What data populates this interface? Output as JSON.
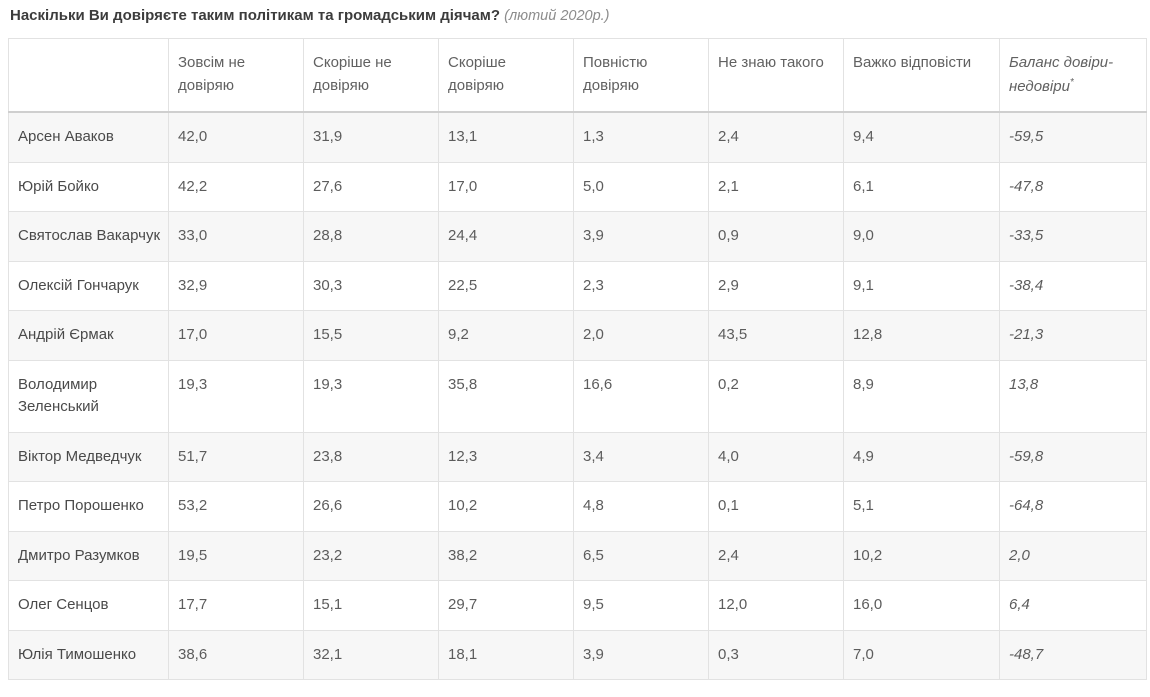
{
  "title": {
    "question": "Наскільки Ви довіряєте таким політикам та громадським діячам?",
    "period": "(лютий 2020р.)"
  },
  "table": {
    "columns": [
      "",
      "Зовсім не довіряю",
      "Скоріше не довіряю",
      "Скоріше довіряю",
      "Повністю довіряю",
      "Не знаю такого",
      "Важко відповісти",
      "Баланс довіри-недовіри"
    ],
    "footnote_mark": "*",
    "rows": [
      {
        "name": "Арсен Аваков",
        "values": [
          "42,0",
          "31,9",
          "13,1",
          "1,3",
          "2,4",
          "9,4",
          "-59,5"
        ]
      },
      {
        "name": "Юрій Бойко",
        "values": [
          "42,2",
          "27,6",
          "17,0",
          "5,0",
          "2,1",
          "6,1",
          "-47,8"
        ]
      },
      {
        "name": "Святослав Вакарчук",
        "values": [
          "33,0",
          "28,8",
          "24,4",
          "3,9",
          "0,9",
          "9,0",
          "-33,5"
        ]
      },
      {
        "name": "Олексій Гончарук",
        "values": [
          "32,9",
          "30,3",
          "22,5",
          "2,3",
          "2,9",
          "9,1",
          "-38,4"
        ]
      },
      {
        "name": "Андрій Єрмак",
        "values": [
          "17,0",
          "15,5",
          "9,2",
          "2,0",
          "43,5",
          "12,8",
          "-21,3"
        ]
      },
      {
        "name": "Володимир Зеленський",
        "values": [
          "19,3",
          "19,3",
          "35,8",
          "16,6",
          "0,2",
          "8,9",
          "13,8"
        ]
      },
      {
        "name": "Віктор Медведчук",
        "values": [
          "51,7",
          "23,8",
          "12,3",
          "3,4",
          "4,0",
          "4,9",
          "-59,8"
        ]
      },
      {
        "name": "Петро Порошенко",
        "values": [
          "53,2",
          "26,6",
          "10,2",
          "4,8",
          "0,1",
          "5,1",
          "-64,8"
        ]
      },
      {
        "name": "Дмитро Разумков",
        "values": [
          "19,5",
          "23,2",
          "38,2",
          "6,5",
          "2,4",
          "10,2",
          "2,0"
        ]
      },
      {
        "name": "Олег Сенцов",
        "values": [
          "17,7",
          "15,1",
          "29,7",
          "9,5",
          "12,0",
          "16,0",
          "6,4"
        ]
      },
      {
        "name": "Юлія Тимошенко",
        "values": [
          "38,6",
          "32,1",
          "18,1",
          "3,9",
          "0,3",
          "7,0",
          "-48,7"
        ]
      }
    ]
  },
  "chart_data": {
    "type": "table",
    "title": "Наскільки Ви довіряєте таким політикам та громадським діячам? (лютий 2020р.)",
    "columns": [
      "Зовсім не довіряю",
      "Скоріше не довіряю",
      "Скоріше довіряю",
      "Повністю довіряю",
      "Не знаю такого",
      "Важко відповісти",
      "Баланс довіри-недовіри*"
    ],
    "rows": [
      {
        "name": "Арсен Аваков",
        "values": [
          42.0,
          31.9,
          13.1,
          1.3,
          2.4,
          9.4,
          -59.5
        ]
      },
      {
        "name": "Юрій Бойко",
        "values": [
          42.2,
          27.6,
          17.0,
          5.0,
          2.1,
          6.1,
          -47.8
        ]
      },
      {
        "name": "Святослав Вакарчук",
        "values": [
          33.0,
          28.8,
          24.4,
          3.9,
          0.9,
          9.0,
          -33.5
        ]
      },
      {
        "name": "Олексій Гончарук",
        "values": [
          32.9,
          30.3,
          22.5,
          2.3,
          2.9,
          9.1,
          -38.4
        ]
      },
      {
        "name": "Андрій Єрмак",
        "values": [
          17.0,
          15.5,
          9.2,
          2.0,
          43.5,
          12.8,
          -21.3
        ]
      },
      {
        "name": "Володимир Зеленський",
        "values": [
          19.3,
          19.3,
          35.8,
          16.6,
          0.2,
          8.9,
          13.8
        ]
      },
      {
        "name": "Віктор Медведчук",
        "values": [
          51.7,
          23.8,
          12.3,
          3.4,
          4.0,
          4.9,
          -59.8
        ]
      },
      {
        "name": "Петро Порошенко",
        "values": [
          53.2,
          26.6,
          10.2,
          4.8,
          0.1,
          5.1,
          -64.8
        ]
      },
      {
        "name": "Дмитро Разумков",
        "values": [
          19.5,
          23.2,
          38.2,
          6.5,
          2.4,
          10.2,
          2.0
        ]
      },
      {
        "name": "Олег Сенцов",
        "values": [
          17.7,
          15.1,
          29.7,
          9.5,
          12.0,
          16.0,
          6.4
        ]
      },
      {
        "name": "Юлія Тимошенко",
        "values": [
          38.6,
          32.1,
          18.1,
          3.9,
          0.3,
          7.0,
          -48.7
        ]
      }
    ]
  }
}
